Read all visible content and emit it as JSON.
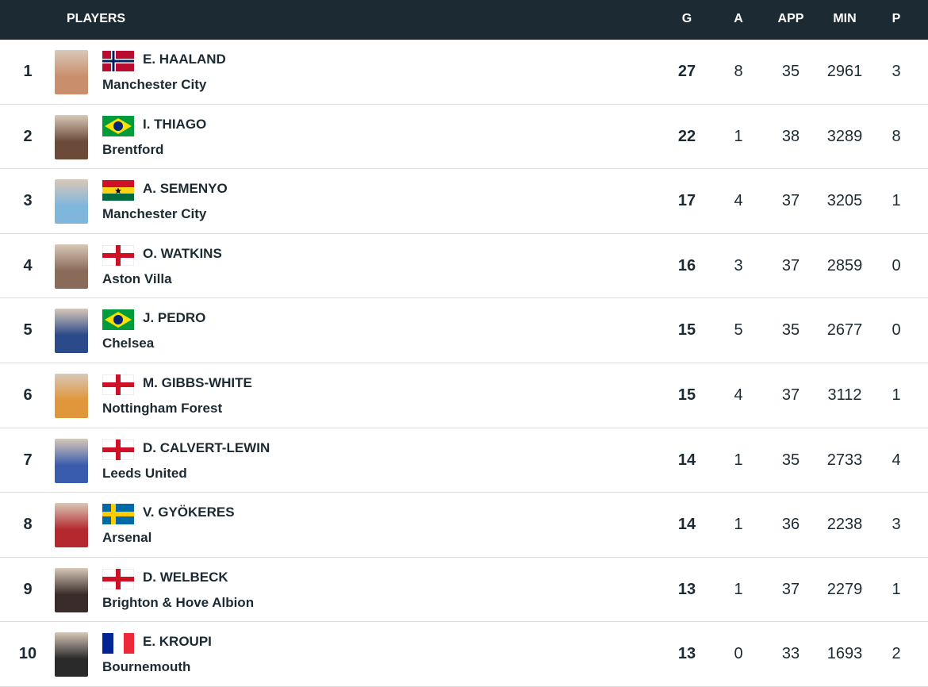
{
  "header": {
    "players": "PLAYERS",
    "columns": [
      "G",
      "A",
      "APP",
      "MIN",
      "P"
    ]
  },
  "rows": [
    {
      "rank": 1,
      "name": "E. HAALAND",
      "team": "Manchester City",
      "stats": [
        27,
        8,
        35,
        2961,
        3
      ]
    },
    {
      "rank": 2,
      "name": "I. THIAGO",
      "team": "Brentford",
      "stats": [
        22,
        1,
        38,
        3289,
        8
      ]
    },
    {
      "rank": 3,
      "name": "A. SEMENYO",
      "team": "Manchester City",
      "stats": [
        17,
        4,
        37,
        3205,
        1
      ]
    },
    {
      "rank": 4,
      "name": "O. WATKINS",
      "team": "Aston Villa",
      "stats": [
        16,
        3,
        37,
        2859,
        0
      ]
    },
    {
      "rank": 5,
      "name": "J. PEDRO",
      "team": "Chelsea",
      "stats": [
        15,
        5,
        35,
        2677,
        0
      ]
    },
    {
      "rank": 6,
      "name": "M. GIBBS-WHITE",
      "team": "Nottingham Forest",
      "stats": [
        15,
        4,
        37,
        3112,
        1
      ]
    },
    {
      "rank": 7,
      "name": "D. CALVERT-LEWIN",
      "team": "Leeds United",
      "stats": [
        14,
        1,
        35,
        2733,
        4
      ]
    },
    {
      "rank": 8,
      "name": "V. GYÖKERES",
      "team": "Arsenal",
      "stats": [
        14,
        1,
        36,
        2238,
        3
      ]
    },
    {
      "rank": 9,
      "name": "D. WELBECK",
      "team": "Brighton & Hove Albion",
      "stats": [
        13,
        1,
        37,
        2279,
        1
      ]
    },
    {
      "rank": 10,
      "name": "E. KROUPI",
      "team": "Bournemouth",
      "stats": [
        13,
        0,
        33,
        1693,
        2
      ]
    }
  ]
}
